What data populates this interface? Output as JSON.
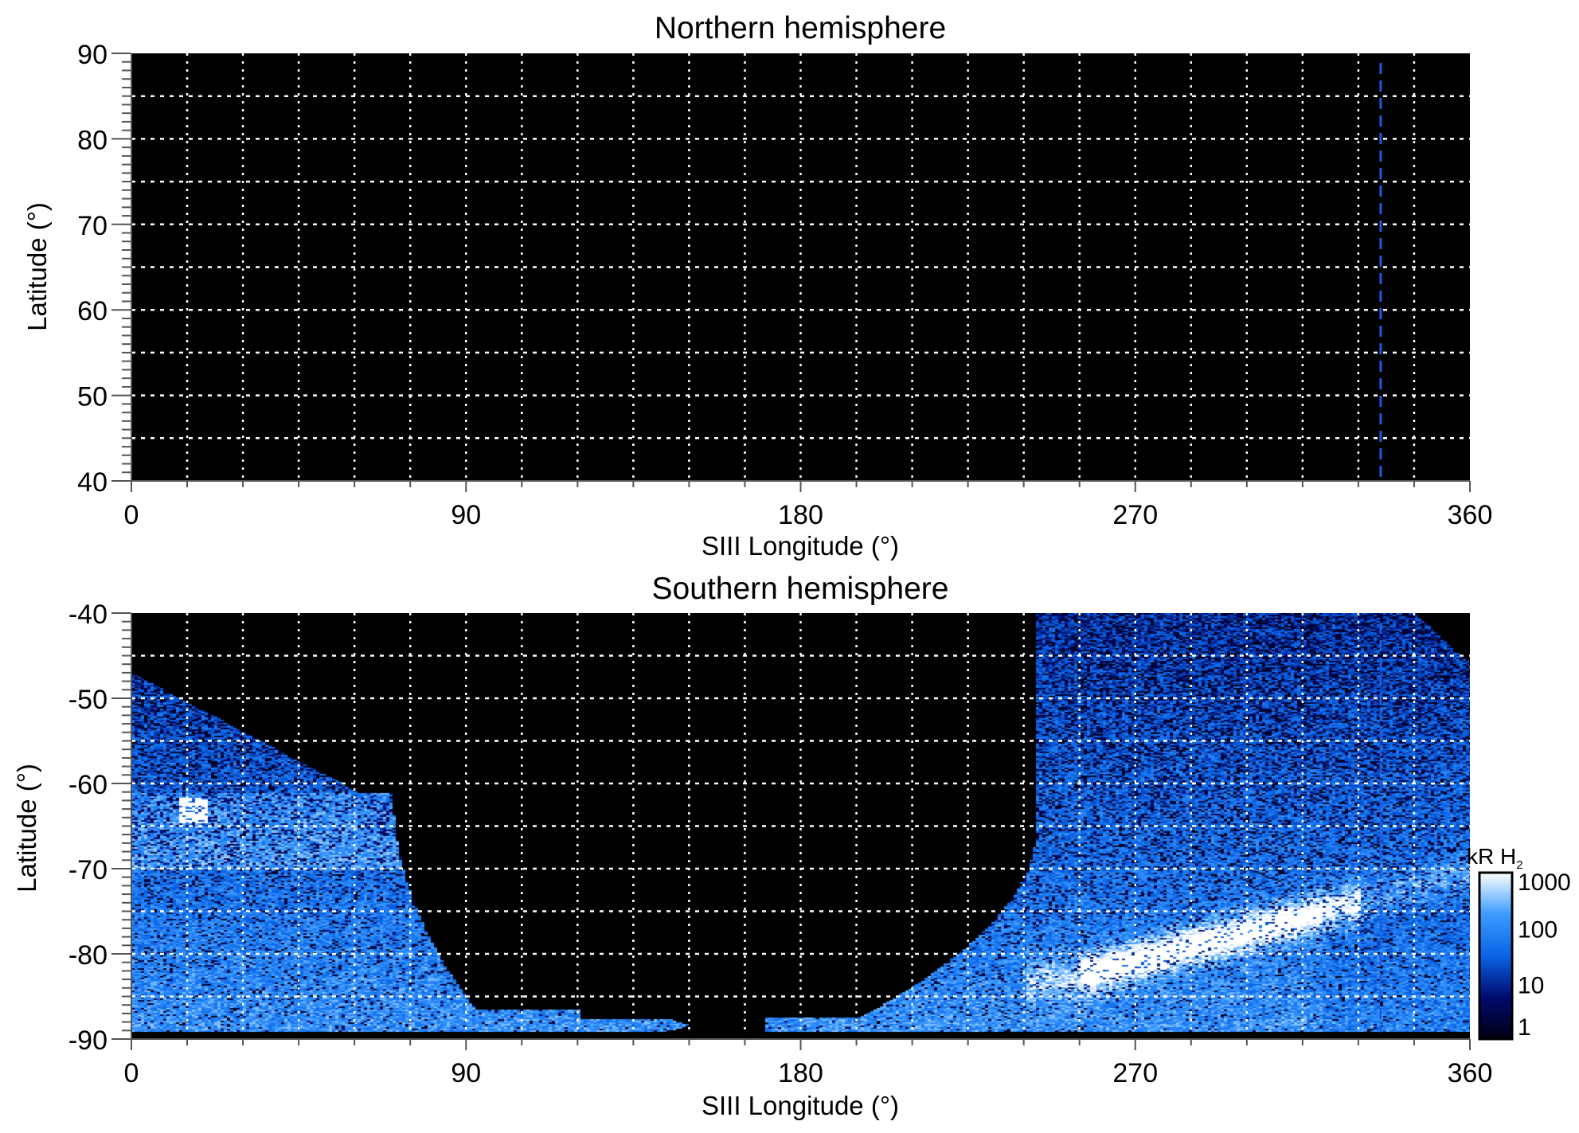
{
  "chart_data": [
    {
      "type": "heatmap",
      "title": "Northern hemisphere",
      "xlabel": "SIII Longitude (°)",
      "ylabel": "Latitude (°)",
      "xlim": [
        0,
        360
      ],
      "ylim": [
        40,
        90
      ],
      "xticks": [
        "0",
        "90",
        "180",
        "270",
        "360"
      ],
      "yticks": [
        "40",
        "50",
        "60",
        "70",
        "80",
        "90"
      ],
      "grid": {
        "lon_step": 15,
        "lat_step": 5,
        "style": "dotted"
      },
      "marker_longitude": 336,
      "content": "no emission"
    },
    {
      "type": "heatmap",
      "title": "Southern hemisphere",
      "xlabel": "SIII Longitude (°)",
      "ylabel": "Latitude (°)",
      "xlim": [
        0,
        360
      ],
      "ylim": [
        -90,
        -40
      ],
      "xticks": [
        "0",
        "90",
        "180",
        "270",
        "360"
      ],
      "yticks": [
        "-90",
        "-80",
        "-70",
        "-60",
        "-50",
        "-40"
      ],
      "grid": {
        "lon_step": 15,
        "lat_step": 5,
        "style": "dotted"
      },
      "marker_longitude": 336,
      "colorbar": {
        "label": "kR H",
        "label_subscript": "2",
        "scale": "log",
        "range": [
          1,
          1000
        ],
        "ticks": [
          "1",
          "10",
          "100",
          "1000"
        ],
        "colors": [
          "#000010",
          "#000a6e",
          "#0a64e6",
          "#3c9bff",
          "#ffffff"
        ]
      }
    }
  ],
  "colors": {
    "marker": "#1e5adc",
    "grid": "#ffffff",
    "background": "#000000"
  }
}
